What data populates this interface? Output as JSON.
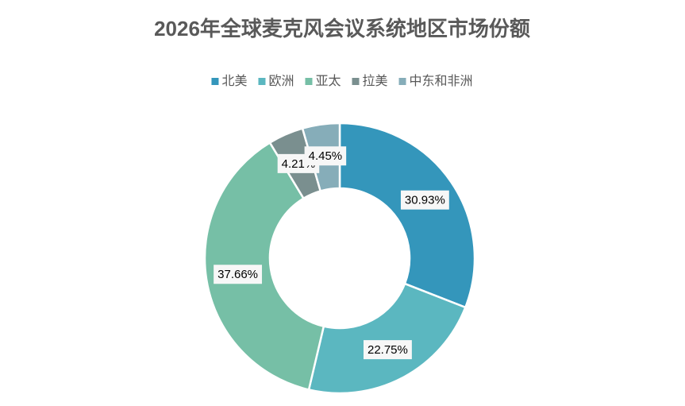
{
  "chart_data": {
    "type": "doughnut",
    "title": "2026年全球麦克风会议系统地区市场份额",
    "categories": [
      "北美",
      "欧洲",
      "亚太",
      "拉美",
      "中东和非洲"
    ],
    "values": [
      30.93,
      22.75,
      37.66,
      4.21,
      4.45
    ],
    "value_labels": [
      "30.93%",
      "22.75%",
      "37.66%",
      "4.21%",
      "4.45%"
    ],
    "colors": [
      "#3496bb",
      "#5bb7c0",
      "#76bfa6",
      "#7a8f8f",
      "#86adb9"
    ],
    "legend": "top"
  }
}
